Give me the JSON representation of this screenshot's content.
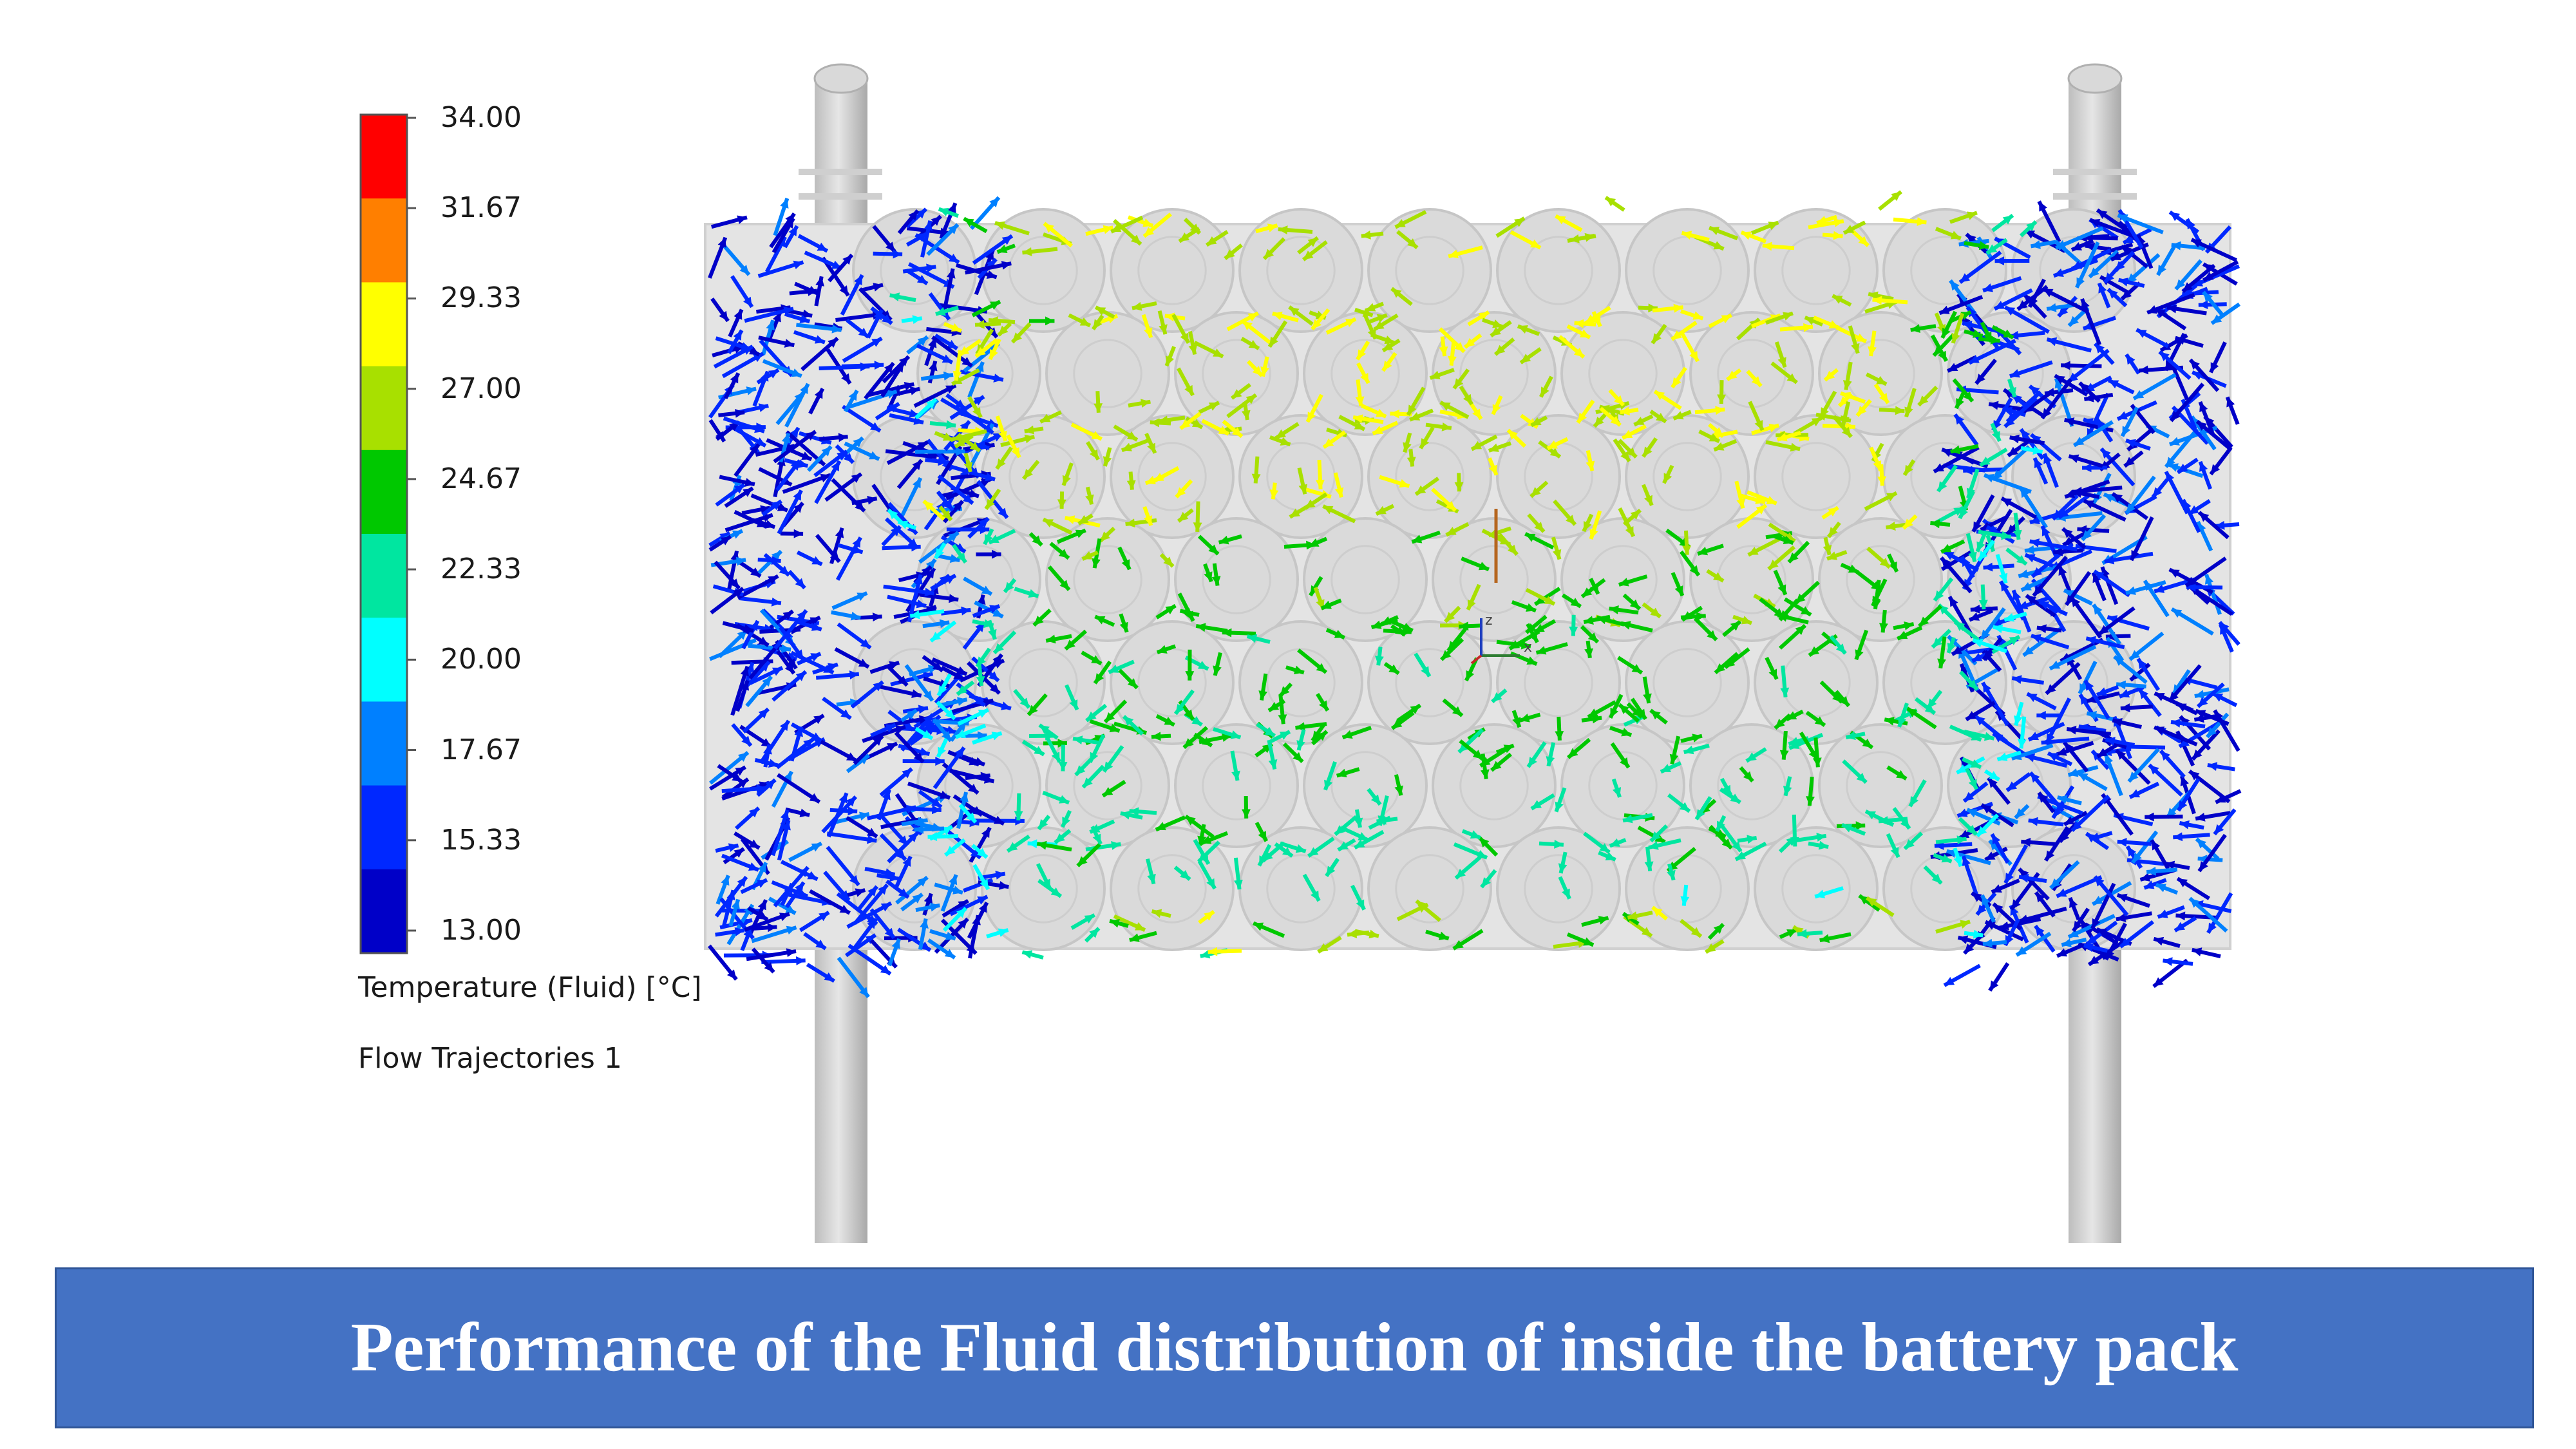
{
  "legend": {
    "ticks": [
      "34.00",
      "31.67",
      "29.33",
      "27.00",
      "24.67",
      "22.33",
      "20.00",
      "17.67",
      "15.33",
      "13.00"
    ],
    "bands": [
      "#ff0000",
      "#ff7f00",
      "#ffff00",
      "#a8e000",
      "#00c800",
      "#00e6a0",
      "#00ffff",
      "#0080ff",
      "#0028ff",
      "#0000c8"
    ],
    "title": "Temperature (Fluid) [°C]",
    "subtitle": "Flow Trajectories 1"
  },
  "caption": "Performance of the Fluid distribution of inside the battery pack",
  "colors": {
    "pipe": "#cccccc",
    "pack_plate": "#e4e4e4",
    "cell": "#d8d8d8",
    "caption_bg": "#4472c4"
  },
  "icons": {
    "axis_triad": "xyz-axis-icon"
  }
}
